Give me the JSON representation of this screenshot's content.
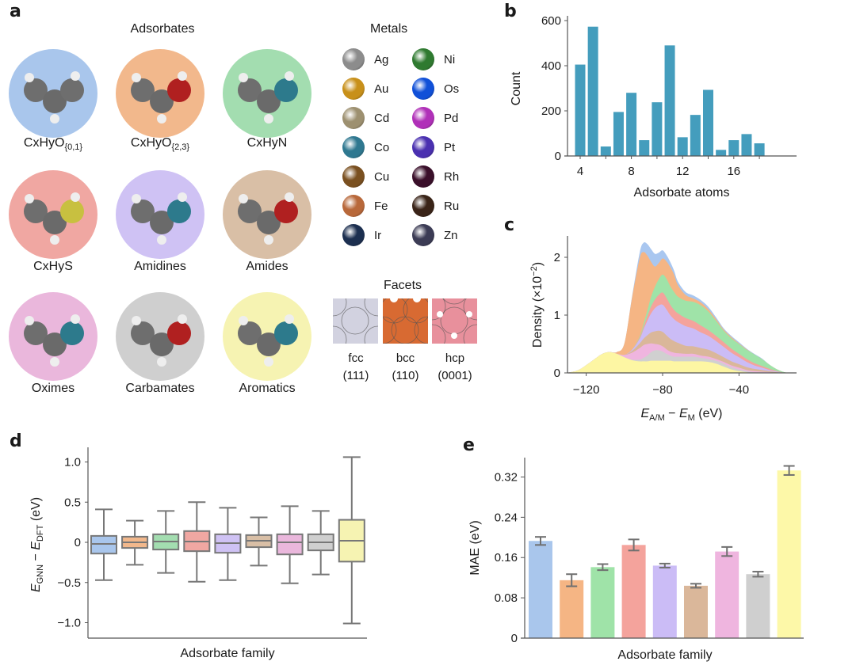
{
  "panel_a": {
    "letter": "a",
    "adsorbates_title": "Adsorbates",
    "adsorbates": [
      {
        "label_main": "CxHyO",
        "label_sub": "{0,1}",
        "name": "CxHyO{0,1}",
        "color": "#a9c6ec"
      },
      {
        "label_main": "CxHyO",
        "label_sub": "{2,3}",
        "name": "CxHyO{2,3}",
        "color": "#f2b88c"
      },
      {
        "label_main": "CxHyN",
        "label_sub": "",
        "name": "CxHyN",
        "color": "#a3ddb0"
      },
      {
        "label_main": "CxHyS",
        "label_sub": "",
        "name": "CxHyS",
        "color": "#f0a7a2"
      },
      {
        "label_main": "Amidines",
        "label_sub": "",
        "name": "Amidines",
        "color": "#cfc2f4"
      },
      {
        "label_main": "Amides",
        "label_sub": "",
        "name": "Amides",
        "color": "#d9bfa6"
      },
      {
        "label_main": "Oximes",
        "label_sub": "",
        "name": "Oximes",
        "color": "#eab7dc"
      },
      {
        "label_main": "Carbamates",
        "label_sub": "",
        "name": "Carbamates",
        "color": "#cfcfcf"
      },
      {
        "label_main": "Aromatics",
        "label_sub": "",
        "name": "Aromatics",
        "color": "#f6f3b2"
      }
    ],
    "metals_title": "Metals",
    "metals": [
      {
        "symbol": "Ag",
        "color": "#8c8c8c"
      },
      {
        "symbol": "Au",
        "color": "#c8901a"
      },
      {
        "symbol": "Cd",
        "color": "#9d9070"
      },
      {
        "symbol": "Co",
        "color": "#2f7890"
      },
      {
        "symbol": "Cu",
        "color": "#7a5020"
      },
      {
        "symbol": "Fe",
        "color": "#b8683a"
      },
      {
        "symbol": "Ir",
        "color": "#1c2f50"
      },
      {
        "symbol": "Ni",
        "color": "#2f7a30"
      },
      {
        "symbol": "Os",
        "color": "#1050d8"
      },
      {
        "symbol": "Pd",
        "color": "#b030b8"
      },
      {
        "symbol": "Pt",
        "color": "#4a30b0"
      },
      {
        "symbol": "Rh",
        "color": "#3a0f2a"
      },
      {
        "symbol": "Ru",
        "color": "#3a2418"
      },
      {
        "symbol": "Zn",
        "color": "#3c3c55"
      }
    ],
    "facets_title": "Facets",
    "facets": [
      {
        "name": "fcc",
        "index": "(111)",
        "color": "#d2d2e0"
      },
      {
        "name": "bcc",
        "index": "(110)",
        "color": "#d86a32"
      },
      {
        "name": "hcp",
        "index": "(0001)",
        "color": "#e8909c"
      }
    ]
  },
  "chart_data": [
    {
      "panel": "b",
      "type": "bar",
      "title": "",
      "xlabel": "Adsorbate atoms",
      "ylabel": "Count",
      "x": [
        4,
        5,
        6,
        7,
        8,
        9,
        10,
        11,
        12,
        13,
        14,
        15,
        16,
        17,
        18
      ],
      "values": [
        405,
        573,
        42,
        195,
        280,
        70,
        238,
        490,
        83,
        182,
        293,
        27,
        70,
        97,
        56
      ],
      "xticks": [
        4,
        8,
        12,
        16
      ],
      "yticks": [
        0,
        200,
        400,
        600
      ],
      "xlim": [
        3,
        21
      ],
      "ylim": [
        0,
        600
      ],
      "color": "#449dbd"
    },
    {
      "panel": "c",
      "type": "area",
      "stacked": true,
      "title": "",
      "xlabel": "E_A/M − E_M (eV)",
      "ylabel": "Density (×10⁻²)",
      "xticks": [
        -120,
        -80,
        -40
      ],
      "yticks": [
        0,
        1,
        2
      ],
      "xlim": [
        -129.5,
        -9.5
      ],
      "ylim": [
        0,
        2.35
      ],
      "x": [
        -130,
        -124,
        -118,
        -112,
        -108,
        -104,
        -100,
        -96,
        -92,
        -90,
        -88,
        -86,
        -84,
        -82,
        -80,
        -78,
        -76,
        -74,
        -72,
        -68,
        -64,
        -60,
        -56,
        -52,
        -48,
        -44,
        -40,
        -36,
        -32,
        -28,
        -24,
        -20,
        -16,
        -12
      ],
      "series": [
        {
          "name": "Aromatics",
          "color": "#fdf6a3",
          "values": [
            0.0,
            0.05,
            0.18,
            0.32,
            0.36,
            0.33,
            0.27,
            0.22,
            0.2,
            0.2,
            0.2,
            0.21,
            0.21,
            0.21,
            0.21,
            0.21,
            0.21,
            0.2,
            0.2,
            0.2,
            0.2,
            0.2,
            0.19,
            0.16,
            0.11,
            0.06,
            0.03,
            0.01,
            0.0,
            0.0,
            0.0,
            0.0,
            0.0,
            0.0
          ]
        },
        {
          "name": "Carbamates",
          "color": "#d0d0d0",
          "values": [
            0.0,
            0.0,
            0.0,
            0.0,
            0.0,
            0.0,
            0.0,
            0.01,
            0.03,
            0.06,
            0.1,
            0.15,
            0.18,
            0.18,
            0.16,
            0.12,
            0.09,
            0.08,
            0.08,
            0.08,
            0.08,
            0.06,
            0.05,
            0.05,
            0.05,
            0.04,
            0.03,
            0.02,
            0.01,
            0.01,
            0.0,
            0.0,
            0.0,
            0.0
          ]
        },
        {
          "name": "Oximes",
          "color": "#efb5df",
          "values": [
            0.0,
            0.0,
            0.0,
            0.0,
            0.0,
            0.0,
            0.04,
            0.12,
            0.2,
            0.22,
            0.2,
            0.15,
            0.11,
            0.1,
            0.09,
            0.08,
            0.07,
            0.07,
            0.06,
            0.05,
            0.05,
            0.04,
            0.04,
            0.03,
            0.03,
            0.03,
            0.03,
            0.02,
            0.02,
            0.01,
            0.01,
            0.0,
            0.0,
            0.0
          ]
        },
        {
          "name": "Amides",
          "color": "#dab79a",
          "values": [
            0.0,
            0.0,
            0.0,
            0.0,
            0.0,
            0.0,
            0.0,
            0.03,
            0.08,
            0.11,
            0.15,
            0.19,
            0.22,
            0.24,
            0.25,
            0.24,
            0.22,
            0.2,
            0.18,
            0.14,
            0.13,
            0.13,
            0.12,
            0.1,
            0.08,
            0.07,
            0.06,
            0.05,
            0.04,
            0.03,
            0.02,
            0.01,
            0.0,
            0.0
          ]
        },
        {
          "name": "Amidines",
          "color": "#cbbcf6",
          "values": [
            0.0,
            0.0,
            0.0,
            0.0,
            0.0,
            0.0,
            0.0,
            0.02,
            0.08,
            0.16,
            0.25,
            0.33,
            0.4,
            0.44,
            0.47,
            0.45,
            0.41,
            0.38,
            0.36,
            0.34,
            0.31,
            0.27,
            0.24,
            0.21,
            0.18,
            0.15,
            0.12,
            0.09,
            0.06,
            0.04,
            0.02,
            0.01,
            0.0,
            0.0
          ]
        },
        {
          "name": "CxHyS",
          "color": "#f4a39c",
          "values": [
            0.0,
            0.0,
            0.0,
            0.0,
            0.0,
            0.0,
            0.0,
            0.0,
            0.02,
            0.04,
            0.08,
            0.12,
            0.15,
            0.18,
            0.21,
            0.2,
            0.18,
            0.16,
            0.15,
            0.14,
            0.13,
            0.12,
            0.1,
            0.09,
            0.08,
            0.07,
            0.06,
            0.05,
            0.04,
            0.03,
            0.02,
            0.01,
            0.0,
            0.0
          ]
        },
        {
          "name": "CxHyN",
          "color": "#9fe3a8",
          "values": [
            0.0,
            0.0,
            0.0,
            0.0,
            0.0,
            0.0,
            0.0,
            0.0,
            0.02,
            0.05,
            0.1,
            0.17,
            0.22,
            0.27,
            0.31,
            0.33,
            0.32,
            0.31,
            0.29,
            0.3,
            0.33,
            0.35,
            0.32,
            0.26,
            0.2,
            0.18,
            0.17,
            0.16,
            0.15,
            0.12,
            0.07,
            0.03,
            0.01,
            0.0
          ]
        },
        {
          "name": "CxHyO{2,3}",
          "color": "#f5b584",
          "values": [
            0.0,
            0.0,
            0.0,
            0.0,
            0.0,
            0.03,
            0.2,
            0.9,
            1.35,
            1.25,
            0.95,
            0.6,
            0.35,
            0.28,
            0.28,
            0.3,
            0.33,
            0.3,
            0.2,
            0.1,
            0.06,
            0.05,
            0.04,
            0.03,
            0.02,
            0.02,
            0.01,
            0.01,
            0.0,
            0.0,
            0.0,
            0.0,
            0.0,
            0.0
          ]
        },
        {
          "name": "CxHyO{0,1}",
          "color": "#a9c7f0",
          "values": [
            0.0,
            0.0,
            0.0,
            0.0,
            0.0,
            0.0,
            0.0,
            0.02,
            0.1,
            0.16,
            0.2,
            0.22,
            0.22,
            0.18,
            0.14,
            0.11,
            0.09,
            0.07,
            0.06,
            0.05,
            0.05,
            0.04,
            0.04,
            0.03,
            0.02,
            0.02,
            0.02,
            0.01,
            0.01,
            0.01,
            0.0,
            0.0,
            0.0,
            0.0
          ]
        }
      ]
    },
    {
      "panel": "d",
      "type": "box",
      "title": "",
      "xlabel": "Adsorbate family",
      "ylabel": "E_GNN − E_DFT (eV)",
      "yticks": [
        -1.0,
        -0.5,
        0,
        0.5,
        1.0
      ],
      "ytick_labels": [
        "−1.0",
        "−0.5",
        "0",
        "0.5",
        "1.0"
      ],
      "ylim": [
        -1.2,
        1.2
      ],
      "categories": [
        "CxHyO{0,1}",
        "CxHyO{2,3}",
        "CxHyN",
        "CxHyS",
        "Amidines",
        "Amides",
        "Oximes",
        "Carbamates",
        "Aromatics"
      ],
      "series": [
        {
          "name": "CxHyO{0,1}",
          "color": "#a9c6ec",
          "whisker_low": -0.47,
          "q1": -0.14,
          "median": -0.02,
          "q3": 0.08,
          "whisker_high": 0.41
        },
        {
          "name": "CxHyO{2,3}",
          "color": "#f2b88c",
          "whisker_low": -0.28,
          "q1": -0.07,
          "median": 0.0,
          "q3": 0.07,
          "whisker_high": 0.27
        },
        {
          "name": "CxHyN",
          "color": "#a3ddb0",
          "whisker_low": -0.38,
          "q1": -0.09,
          "median": 0.01,
          "q3": 0.1,
          "whisker_high": 0.39
        },
        {
          "name": "CxHyS",
          "color": "#f0a7a2",
          "whisker_low": -0.49,
          "q1": -0.11,
          "median": 0.01,
          "q3": 0.14,
          "whisker_high": 0.5
        },
        {
          "name": "Amidines",
          "color": "#cfc2f4",
          "whisker_low": -0.47,
          "q1": -0.13,
          "median": -0.01,
          "q3": 0.1,
          "whisker_high": 0.43
        },
        {
          "name": "Amides",
          "color": "#d9bfa6",
          "whisker_low": -0.29,
          "q1": -0.06,
          "median": 0.02,
          "q3": 0.09,
          "whisker_high": 0.31
        },
        {
          "name": "Oximes",
          "color": "#eab7dc",
          "whisker_low": -0.51,
          "q1": -0.15,
          "median": 0.0,
          "q3": 0.1,
          "whisker_high": 0.45
        },
        {
          "name": "Carbamates",
          "color": "#cfcfcf",
          "whisker_low": -0.4,
          "q1": -0.1,
          "median": 0.0,
          "q3": 0.1,
          "whisker_high": 0.39
        },
        {
          "name": "Aromatics",
          "color": "#f6f3b2",
          "whisker_low": -1.01,
          "q1": -0.24,
          "median": 0.02,
          "q3": 0.28,
          "whisker_high": 1.06
        }
      ]
    },
    {
      "panel": "e",
      "type": "bar",
      "title": "",
      "xlabel": "Adsorbate family",
      "ylabel": "MAE (eV)",
      "yticks": [
        0,
        0.08,
        0.16,
        0.24,
        0.32
      ],
      "ytick_labels": [
        "0",
        "0.08",
        "0.16",
        "0.24",
        "0.32"
      ],
      "ylim": [
        0,
        0.36
      ],
      "categories": [
        "CxHyO{0,1}",
        "CxHyO{2,3}",
        "CxHyN",
        "CxHyS",
        "Amidines",
        "Amides",
        "Oximes",
        "Carbamates",
        "Aromatics"
      ],
      "values": [
        0.193,
        0.115,
        0.141,
        0.185,
        0.144,
        0.104,
        0.172,
        0.127,
        0.333
      ],
      "error": [
        0.008,
        0.012,
        0.006,
        0.011,
        0.004,
        0.004,
        0.009,
        0.005,
        0.009
      ],
      "colors": [
        "#a9c6ec",
        "#f5b584",
        "#9fe3a8",
        "#f4a39c",
        "#cbbcf6",
        "#dab79a",
        "#efb5df",
        "#cfcfcf",
        "#fdf8a8"
      ]
    }
  ],
  "labels": {
    "b": "b",
    "c": "c",
    "d": "d",
    "e": "e"
  }
}
